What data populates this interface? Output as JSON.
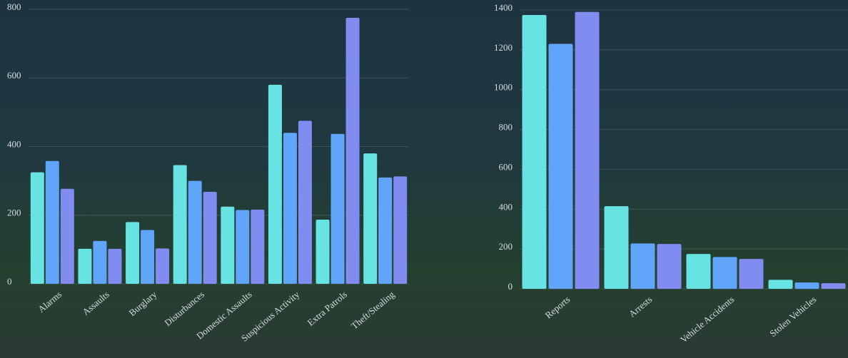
{
  "chart_data": [
    {
      "type": "bar",
      "categories": [
        "Alarms",
        "Assaults",
        "Burglary",
        "Disturbances",
        "Domestic Assaults",
        "Suspicious Activity",
        "Extra Patrols",
        "Theft/Stealing"
      ],
      "series": [
        {
          "color": "#67e3e3",
          "values": [
            325,
            102,
            180,
            346,
            225,
            580,
            187,
            380
          ]
        },
        {
          "color": "#60a5fa",
          "values": [
            358,
            125,
            157,
            300,
            215,
            440,
            437,
            310
          ]
        },
        {
          "color": "#818cf0",
          "values": [
            277,
            102,
            103,
            268,
            216,
            475,
            775,
            313
          ]
        }
      ],
      "ylim": [
        0,
        800
      ],
      "yticks": [
        0,
        200,
        400,
        600,
        800
      ],
      "grid": true
    },
    {
      "type": "bar",
      "categories": [
        "Reports",
        "Arrests",
        "Vehicle Accidents",
        "Stolen Vehicles"
      ],
      "series": [
        {
          "color": "#67e3e3",
          "values": [
            1375,
            415,
            175,
            45
          ]
        },
        {
          "color": "#60a5fa",
          "values": [
            1230,
            228,
            160,
            32
          ]
        },
        {
          "color": "#818cf0",
          "values": [
            1390,
            225,
            150,
            28
          ]
        }
      ],
      "ylim": [
        0,
        1400
      ],
      "yticks": [
        0,
        200,
        400,
        600,
        800,
        1000,
        1200,
        1400
      ],
      "grid": true
    }
  ]
}
